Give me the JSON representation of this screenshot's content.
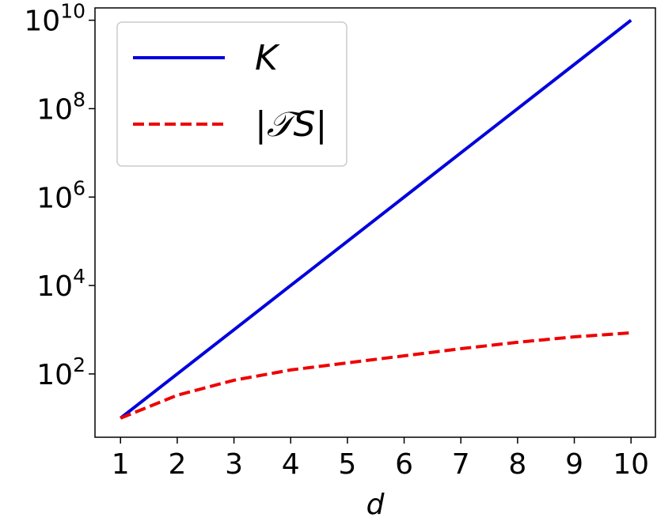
{
  "chart_data": {
    "type": "line",
    "x_label": "d",
    "x": [
      1,
      2,
      3,
      4,
      5,
      6,
      7,
      8,
      9,
      10
    ],
    "series": [
      {
        "name": "K",
        "color": "#0000dd",
        "style": "solid",
        "values": [
          10,
          100,
          1000,
          10000,
          100000,
          1000000,
          10000000,
          100000000,
          1000000000,
          10000000000
        ]
      },
      {
        "name": "|𝒯S|",
        "color": "#ee0000",
        "style": "dashed",
        "values": [
          10,
          33,
          72,
          123,
          178,
          257,
          372,
          520,
          690,
          850
        ]
      }
    ],
    "xlim": [
      0.55,
      10.43
    ],
    "xticks": [
      1,
      2,
      3,
      4,
      5,
      6,
      7,
      8,
      9,
      10
    ],
    "ylim": [
      3.7,
      19000000000
    ],
    "yticks": [
      {
        "value": 100,
        "label": "10^2"
      },
      {
        "value": 10000,
        "label": "10^4"
      },
      {
        "value": 1000000,
        "label": "10^6"
      },
      {
        "value": 100000000,
        "label": "10^8"
      },
      {
        "value": 10000000000,
        "label": "10^10"
      }
    ],
    "log_y": true,
    "grid": false,
    "legend": "upper left"
  }
}
